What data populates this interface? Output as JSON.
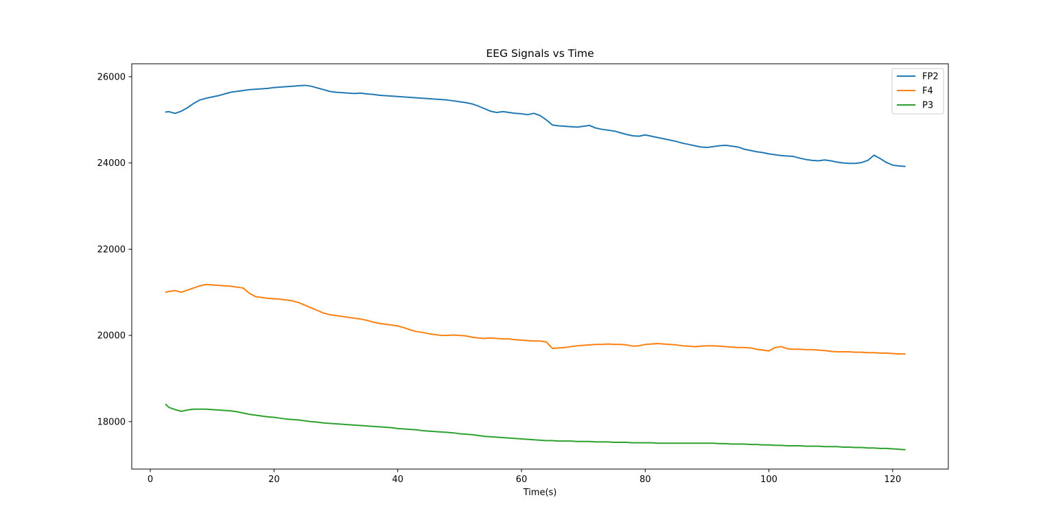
{
  "chart_data": {
    "type": "line",
    "title": "EEG Signals vs Time",
    "xlabel": "Time(s)",
    "ylabel": "",
    "xlim": [
      -3,
      129
    ],
    "ylim": [
      16900,
      26300
    ],
    "xticks": [
      0,
      20,
      40,
      60,
      80,
      100,
      120
    ],
    "yticks": [
      18000,
      20000,
      22000,
      24000,
      26000
    ],
    "grid": false,
    "legend_position": "top-right",
    "series": [
      {
        "name": "FP2",
        "color": "#1f77b4",
        "x": [
          2.5,
          3,
          4,
          5,
          6,
          7,
          8,
          9,
          10,
          11,
          12,
          13,
          14,
          15,
          16,
          17,
          18,
          19,
          20,
          21,
          22,
          23,
          24,
          25,
          26,
          27,
          28,
          29,
          30,
          31,
          32,
          33,
          34,
          35,
          36,
          37,
          38,
          39,
          40,
          41,
          42,
          43,
          44,
          45,
          46,
          47,
          48,
          49,
          50,
          51,
          52,
          53,
          54,
          55,
          56,
          57,
          58,
          59,
          60,
          61,
          62,
          63,
          64,
          65,
          66,
          67,
          68,
          69,
          70,
          71,
          72,
          73,
          74,
          75,
          76,
          77,
          78,
          79,
          80,
          81,
          82,
          83,
          84,
          85,
          86,
          87,
          88,
          89,
          90,
          91,
          92,
          93,
          94,
          95,
          96,
          97,
          98,
          99,
          100,
          101,
          102,
          103,
          104,
          105,
          106,
          107,
          108,
          109,
          110,
          111,
          112,
          113,
          114,
          115,
          116,
          117,
          118,
          119,
          120,
          121,
          122
        ],
        "values": [
          25180,
          25190,
          25150,
          25200,
          25280,
          25380,
          25460,
          25500,
          25530,
          25560,
          25600,
          25640,
          25660,
          25680,
          25700,
          25710,
          25720,
          25730,
          25750,
          25760,
          25770,
          25780,
          25790,
          25800,
          25780,
          25740,
          25700,
          25660,
          25640,
          25630,
          25620,
          25610,
          25620,
          25600,
          25590,
          25570,
          25560,
          25550,
          25540,
          25530,
          25520,
          25510,
          25500,
          25490,
          25480,
          25470,
          25460,
          25440,
          25420,
          25400,
          25370,
          25320,
          25260,
          25200,
          25170,
          25190,
          25170,
          25150,
          25140,
          25120,
          25150,
          25100,
          25000,
          24880,
          24860,
          24850,
          24840,
          24830,
          24850,
          24870,
          24810,
          24780,
          24760,
          24740,
          24700,
          24660,
          24630,
          24620,
          24650,
          24620,
          24590,
          24560,
          24530,
          24500,
          24460,
          24430,
          24400,
          24370,
          24360,
          24380,
          24400,
          24410,
          24390,
          24370,
          24320,
          24290,
          24260,
          24240,
          24210,
          24190,
          24170,
          24160,
          24150,
          24110,
          24080,
          24060,
          24050,
          24070,
          24050,
          24020,
          24000,
          23990,
          23990,
          24010,
          24060,
          24180,
          24100,
          24010,
          23950,
          23930,
          23920
        ]
      },
      {
        "name": "F4",
        "color": "#ff7f0e",
        "x": [
          2.5,
          3,
          4,
          5,
          6,
          7,
          8,
          9,
          10,
          11,
          12,
          13,
          14,
          15,
          16,
          17,
          18,
          19,
          20,
          21,
          22,
          23,
          24,
          25,
          26,
          27,
          28,
          29,
          30,
          31,
          32,
          33,
          34,
          35,
          36,
          37,
          38,
          39,
          40,
          41,
          42,
          43,
          44,
          45,
          46,
          47,
          48,
          49,
          50,
          51,
          52,
          53,
          54,
          55,
          56,
          57,
          58,
          59,
          60,
          61,
          62,
          63,
          64,
          65,
          66,
          67,
          68,
          69,
          70,
          71,
          72,
          73,
          74,
          75,
          76,
          77,
          78,
          79,
          80,
          81,
          82,
          83,
          84,
          85,
          86,
          87,
          88,
          89,
          90,
          91,
          92,
          93,
          94,
          95,
          96,
          97,
          98,
          99,
          100,
          101,
          102,
          103,
          104,
          105,
          106,
          107,
          108,
          109,
          110,
          111,
          112,
          113,
          114,
          115,
          116,
          117,
          118,
          119,
          120,
          121,
          122
        ],
        "values": [
          21000,
          21020,
          21040,
          21000,
          21050,
          21100,
          21150,
          21180,
          21170,
          21160,
          21150,
          21140,
          21120,
          21100,
          20980,
          20900,
          20880,
          20860,
          20850,
          20840,
          20820,
          20800,
          20760,
          20700,
          20640,
          20580,
          20520,
          20480,
          20460,
          20440,
          20420,
          20400,
          20380,
          20350,
          20310,
          20280,
          20260,
          20240,
          20220,
          20180,
          20130,
          20090,
          20070,
          20040,
          20020,
          20000,
          20000,
          20010,
          20000,
          19990,
          19960,
          19940,
          19930,
          19940,
          19930,
          19920,
          19920,
          19900,
          19890,
          19880,
          19870,
          19870,
          19850,
          19700,
          19710,
          19720,
          19740,
          19760,
          19770,
          19780,
          19790,
          19790,
          19800,
          19790,
          19790,
          19780,
          19750,
          19760,
          19790,
          19800,
          19810,
          19800,
          19790,
          19780,
          19760,
          19750,
          19740,
          19750,
          19760,
          19760,
          19750,
          19740,
          19730,
          19720,
          19720,
          19710,
          19680,
          19660,
          19640,
          19720,
          19740,
          19690,
          19680,
          19680,
          19670,
          19670,
          19660,
          19650,
          19630,
          19620,
          19620,
          19620,
          19610,
          19610,
          19600,
          19600,
          19590,
          19590,
          19580,
          19570,
          19570
        ]
      },
      {
        "name": "P3",
        "color": "#2ca02c",
        "x": [
          2.5,
          3,
          4,
          5,
          6,
          7,
          8,
          9,
          10,
          11,
          12,
          13,
          14,
          15,
          16,
          17,
          18,
          19,
          20,
          21,
          22,
          23,
          24,
          25,
          26,
          27,
          28,
          29,
          30,
          31,
          32,
          33,
          34,
          35,
          36,
          37,
          38,
          39,
          40,
          41,
          42,
          43,
          44,
          45,
          46,
          47,
          48,
          49,
          50,
          51,
          52,
          53,
          54,
          55,
          56,
          57,
          58,
          59,
          60,
          61,
          62,
          63,
          64,
          65,
          66,
          67,
          68,
          69,
          70,
          71,
          72,
          73,
          74,
          75,
          76,
          77,
          78,
          79,
          80,
          81,
          82,
          83,
          84,
          85,
          86,
          87,
          88,
          89,
          90,
          91,
          92,
          93,
          94,
          95,
          96,
          97,
          98,
          99,
          100,
          101,
          102,
          103,
          104,
          105,
          106,
          107,
          108,
          109,
          110,
          111,
          112,
          113,
          114,
          115,
          116,
          117,
          118,
          119,
          120,
          121,
          122
        ],
        "values": [
          18400,
          18330,
          18280,
          18240,
          18270,
          18290,
          18290,
          18290,
          18280,
          18270,
          18260,
          18250,
          18230,
          18200,
          18170,
          18150,
          18130,
          18110,
          18100,
          18080,
          18060,
          18050,
          18040,
          18020,
          18000,
          17990,
          17970,
          17960,
          17950,
          17940,
          17930,
          17920,
          17910,
          17900,
          17890,
          17880,
          17870,
          17860,
          17840,
          17830,
          17820,
          17810,
          17790,
          17780,
          17770,
          17760,
          17750,
          17740,
          17720,
          17710,
          17700,
          17680,
          17660,
          17650,
          17640,
          17630,
          17620,
          17610,
          17600,
          17590,
          17580,
          17570,
          17560,
          17560,
          17550,
          17550,
          17550,
          17540,
          17540,
          17540,
          17530,
          17530,
          17530,
          17520,
          17520,
          17520,
          17510,
          17510,
          17510,
          17510,
          17500,
          17500,
          17500,
          17500,
          17500,
          17500,
          17500,
          17500,
          17500,
          17500,
          17490,
          17490,
          17480,
          17480,
          17480,
          17470,
          17470,
          17460,
          17460,
          17450,
          17450,
          17440,
          17440,
          17440,
          17430,
          17430,
          17430,
          17420,
          17420,
          17420,
          17410,
          17410,
          17400,
          17400,
          17390,
          17390,
          17380,
          17380,
          17370,
          17360,
          17350
        ]
      }
    ]
  }
}
